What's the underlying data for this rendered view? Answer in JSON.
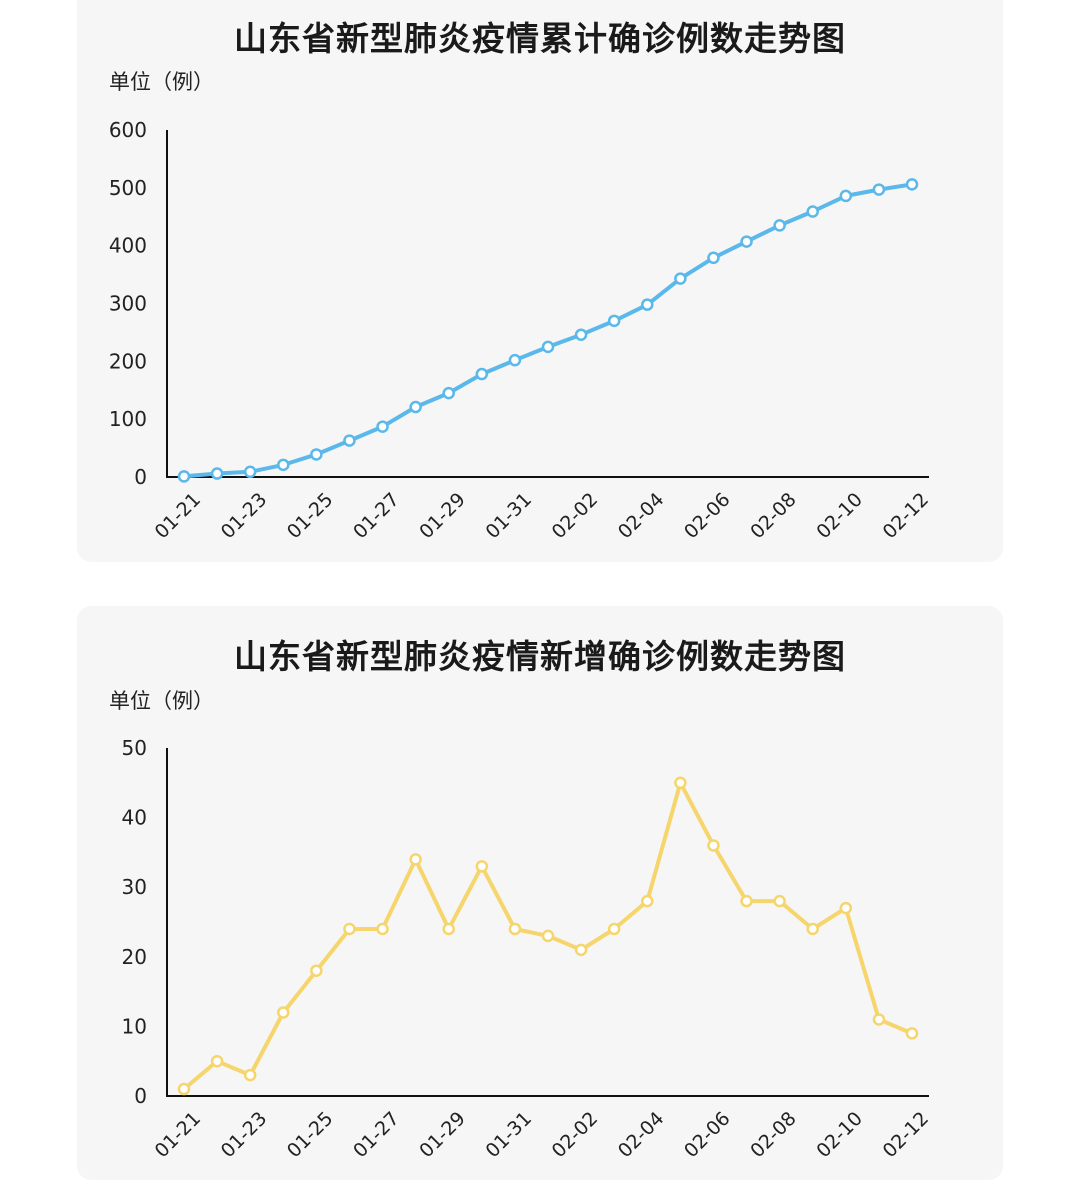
{
  "charts": [
    {
      "title": "山东省新型肺炎疫情累计确诊例数走势图",
      "unit": "单位（例）"
    },
    {
      "title": "山东省新型肺炎疫情新增确诊例数走势图",
      "unit": "单位（例）"
    }
  ],
  "colors": {
    "cumulative_line": "#5ab8ea",
    "new_line": "#f5d56c",
    "panel_bg": "#f6f6f6",
    "axis": "#111111"
  },
  "chart_data": [
    {
      "type": "line",
      "title": "山东省新型肺炎疫情累计确诊例数走势图",
      "ylabel": "单位（例）",
      "xlabel": "",
      "x": [
        "01-21",
        "01-22",
        "01-23",
        "01-24",
        "01-25",
        "01-26",
        "01-27",
        "01-28",
        "01-29",
        "01-30",
        "01-31",
        "02-01",
        "02-02",
        "02-03",
        "02-04",
        "02-05",
        "02-06",
        "02-07",
        "02-08",
        "02-09",
        "02-10",
        "02-11",
        "02-12"
      ],
      "x_tick_labels": [
        "01-21",
        "01-23",
        "01-25",
        "01-27",
        "01-29",
        "01-31",
        "02-02",
        "02-04",
        "02-06",
        "02-08",
        "02-10",
        "02-12"
      ],
      "y_ticks": [
        0,
        100,
        200,
        300,
        400,
        500,
        600
      ],
      "ylim": [
        0,
        600
      ],
      "grid": false,
      "series": [
        {
          "values": [
            1,
            6,
            9,
            21,
            39,
            63,
            87,
            121,
            145,
            178,
            202,
            225,
            246,
            270,
            298,
            343,
            379,
            407,
            435,
            459,
            486,
            497,
            506
          ]
        }
      ]
    },
    {
      "type": "line",
      "title": "山东省新型肺炎疫情新增确诊例数走势图",
      "ylabel": "单位（例）",
      "xlabel": "",
      "x": [
        "01-21",
        "01-22",
        "01-23",
        "01-24",
        "01-25",
        "01-26",
        "01-27",
        "01-28",
        "01-29",
        "01-30",
        "01-31",
        "02-01",
        "02-02",
        "02-03",
        "02-04",
        "02-05",
        "02-06",
        "02-07",
        "02-08",
        "02-09",
        "02-10",
        "02-11",
        "02-12"
      ],
      "x_tick_labels": [
        "01-21",
        "01-23",
        "01-25",
        "01-27",
        "01-29",
        "01-31",
        "02-02",
        "02-04",
        "02-06",
        "02-08",
        "02-10",
        "02-12"
      ],
      "y_ticks": [
        0,
        10,
        20,
        30,
        40,
        50
      ],
      "ylim": [
        0,
        50
      ],
      "grid": false,
      "series": [
        {
          "values": [
            1,
            5,
            3,
            12,
            18,
            24,
            24,
            34,
            24,
            33,
            24,
            23,
            21,
            24,
            28,
            45,
            36,
            28,
            28,
            24,
            27,
            11,
            9
          ]
        }
      ]
    }
  ]
}
